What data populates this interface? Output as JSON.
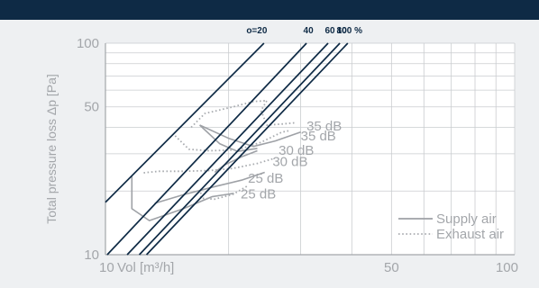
{
  "colors": {
    "top_bar": "#0e2a45",
    "page_background": "#eef0f2",
    "plot_background": "#ffffff",
    "grid": "#c9cccf",
    "axis": "#a3a6aa",
    "characteristic_lines": "#0e2a45",
    "supply_curve": "#9ea1a6",
    "exhaust_curve": "#a9acb0"
  },
  "chart_data": {
    "type": "line",
    "x_scale": "log",
    "y_scale": "log",
    "xlim": [
      10,
      100
    ],
    "ylim": [
      10,
      100
    ],
    "xlabel": "Vol [m³/h]",
    "ylabel": "Total pressure loss Δp [Pa]",
    "x_ticks": [
      {
        "value": 10,
        "label": "10"
      },
      {
        "value": 50,
        "label": "50"
      },
      {
        "value": 100,
        "label": "100"
      }
    ],
    "y_ticks": [
      {
        "value": 10,
        "label": "10"
      },
      {
        "value": 50,
        "label": "50"
      },
      {
        "value": 100,
        "label": "100"
      }
    ],
    "grid": true,
    "opening_label_prefix": "o=",
    "opening_label_suffix": " %",
    "opening_lines": [
      {
        "label": "20",
        "points": [
          [
            10,
            17.7
          ],
          [
            24.4,
            100
          ]
        ]
      },
      {
        "label": "40",
        "points": [
          [
            10.1,
            10
          ],
          [
            31,
            100
          ]
        ]
      },
      {
        "label": "60",
        "points": [
          [
            11.3,
            10
          ],
          [
            35,
            100
          ]
        ]
      },
      {
        "label": "80",
        "points": [
          [
            12.1,
            10
          ],
          [
            37.4,
            100
          ]
        ]
      },
      {
        "label": "100",
        "points": [
          [
            12.6,
            10
          ],
          [
            39.1,
            100
          ]
        ]
      }
    ],
    "db_labels": [
      {
        "text": "35 dB",
        "x": 31.0,
        "y": 40.5
      },
      {
        "text": "35 dB",
        "x": 30.0,
        "y": 36.4
      },
      {
        "text": "30 dB",
        "x": 26.5,
        "y": 31.2
      },
      {
        "text": "30 dB",
        "x": 25.6,
        "y": 27.6
      },
      {
        "text": "25 dB",
        "x": 22.3,
        "y": 23.0
      },
      {
        "text": "25 dB",
        "x": 21.4,
        "y": 19.4
      }
    ],
    "legend": {
      "placement": "bottom-right",
      "entries": [
        {
          "name": "Supply air",
          "style": "solid"
        },
        {
          "name": "Exhaust air",
          "style": "dotted"
        }
      ]
    },
    "series": [
      {
        "name": "Supply air",
        "style": "solid",
        "points": [
          [
            17.0,
            41.0
          ],
          [
            19.0,
            33.5
          ],
          [
            21.0,
            30.8
          ],
          [
            23.5,
            31.8
          ]
        ]
      },
      {
        "name": "Supply air",
        "style": "solid",
        "points": [
          [
            17.0,
            41.0
          ],
          [
            20.0,
            35.5
          ],
          [
            23.0,
            32.5
          ],
          [
            26.0,
            34.5
          ],
          [
            30.0,
            38.0
          ]
        ]
      },
      {
        "name": "Supply air",
        "style": "solid",
        "points": [
          [
            18.5,
            24.5
          ],
          [
            19.5,
            26.5
          ],
          [
            21.5,
            29.0
          ],
          [
            23.5,
            31.0
          ]
        ]
      },
      {
        "name": "Supply air",
        "style": "solid",
        "points": [
          [
            11.6,
            23.5
          ],
          [
            11.6,
            16.5
          ],
          [
            12.8,
            14.5
          ],
          [
            15.5,
            16.5
          ],
          [
            18.2,
            18.8
          ],
          [
            20.6,
            19.5
          ]
        ]
      },
      {
        "name": "Supply air",
        "style": "solid",
        "points": [
          [
            13.2,
            17.5
          ],
          [
            15.5,
            19.2
          ],
          [
            18.5,
            21.0
          ],
          [
            21.5,
            22.5
          ],
          [
            24.5,
            24.5
          ]
        ]
      },
      {
        "name": "Exhaust air",
        "style": "dotted",
        "points": [
          [
            16.2,
            40.0
          ],
          [
            17.5,
            46.5
          ],
          [
            20.5,
            50.0
          ],
          [
            23.0,
            53.0
          ],
          [
            24.8,
            53.5
          ],
          [
            24.0,
            48.0
          ],
          [
            24.8,
            41.0
          ],
          [
            27.0,
            41.5
          ],
          [
            29.0,
            42.0
          ]
        ]
      },
      {
        "name": "Exhaust air",
        "style": "dotted",
        "points": [
          [
            14.8,
            36.5
          ],
          [
            16.0,
            31.5
          ],
          [
            18.0,
            31.0
          ],
          [
            21.0,
            31.3
          ],
          [
            24.0,
            34.0
          ],
          [
            27.0,
            38.0
          ],
          [
            28.0,
            38.5
          ]
        ]
      },
      {
        "name": "Exhaust air",
        "style": "dotted",
        "points": [
          [
            12.4,
            24.4
          ],
          [
            13.5,
            24.8
          ],
          [
            15.5,
            24.8
          ],
          [
            18.0,
            25.0
          ],
          [
            20.5,
            25.6
          ],
          [
            23.5,
            27.0
          ],
          [
            25.8,
            28.5
          ]
        ]
      },
      {
        "name": "Exhaust air",
        "style": "dotted",
        "points": [
          [
            17.1,
            20.5
          ],
          [
            17.1,
            18.5
          ],
          [
            18.5,
            18.3
          ],
          [
            20.5,
            19.3
          ],
          [
            22.3,
            21.2
          ]
        ]
      }
    ]
  }
}
